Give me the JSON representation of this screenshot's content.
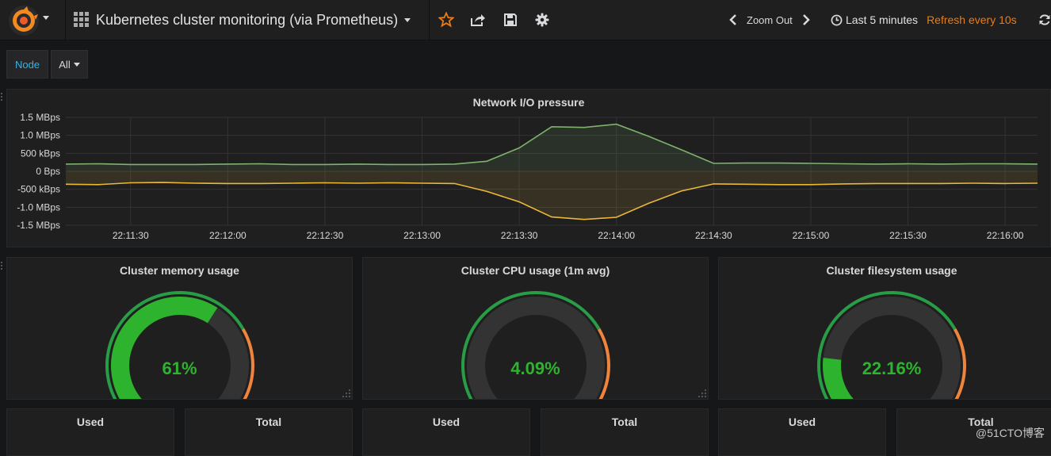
{
  "navbar": {
    "dashboard_title": "Kubernetes cluster monitoring (via Prometheus)",
    "zoom_out_label": "Zoom Out",
    "time_range_label": "Last 5 minutes",
    "refresh_label": "Refresh every 10s"
  },
  "variables": {
    "node_label": "Node",
    "node_value": "All"
  },
  "network_panel": {
    "title": "Network I/O pressure",
    "chart_data": {
      "type": "area",
      "title": "Network I/O pressure",
      "y_tick_labels": [
        "1.5 MBps",
        "1.0 MBps",
        "500 kBps",
        "0 Bps",
        "-500 kBps",
        "-1.0 MBps",
        "-1.5 MBps"
      ],
      "y_ticks": [
        1.5,
        1.0,
        0.5,
        0,
        -0.5,
        -1.0,
        -1.5
      ],
      "ylim": [
        -1.5,
        1.5
      ],
      "y_unit": "MBps",
      "x_tick_labels": [
        "22:11:30",
        "22:12:00",
        "22:12:30",
        "22:13:00",
        "22:13:30",
        "22:14:00",
        "22:14:30",
        "22:15:00",
        "22:15:30",
        "22:16:00"
      ],
      "x": [
        "22:11:10",
        "22:11:20",
        "22:11:30",
        "22:11:40",
        "22:11:50",
        "22:12:00",
        "22:12:10",
        "22:12:20",
        "22:12:30",
        "22:12:40",
        "22:12:50",
        "22:13:00",
        "22:13:10",
        "22:13:20",
        "22:13:30",
        "22:13:40",
        "22:13:50",
        "22:14:00",
        "22:14:10",
        "22:14:20",
        "22:14:30",
        "22:14:40",
        "22:14:50",
        "22:15:00",
        "22:15:10",
        "22:15:20",
        "22:15:30",
        "22:15:40",
        "22:15:50",
        "22:16:00",
        "22:16:10"
      ],
      "x_range_seconds": [
        0,
        300
      ],
      "x_seconds": [
        0,
        10,
        20,
        30,
        40,
        50,
        60,
        70,
        80,
        90,
        100,
        110,
        120,
        130,
        140,
        150,
        160,
        170,
        180,
        190,
        200,
        210,
        220,
        230,
        240,
        250,
        260,
        270,
        280,
        290,
        300
      ],
      "series": [
        {
          "color": "#7eb26d",
          "values": [
            0.2,
            0.21,
            0.19,
            0.19,
            0.19,
            0.2,
            0.21,
            0.19,
            0.19,
            0.2,
            0.19,
            0.19,
            0.2,
            0.28,
            0.65,
            1.24,
            1.22,
            1.31,
            0.97,
            0.6,
            0.22,
            0.23,
            0.23,
            0.22,
            0.21,
            0.2,
            0.21,
            0.2,
            0.21,
            0.21,
            0.2
          ]
        },
        {
          "color": "#eab839",
          "values": [
            -0.36,
            -0.37,
            -0.32,
            -0.31,
            -0.33,
            -0.34,
            -0.34,
            -0.33,
            -0.32,
            -0.33,
            -0.32,
            -0.33,
            -0.34,
            -0.56,
            -0.85,
            -1.27,
            -1.34,
            -1.28,
            -0.89,
            -0.55,
            -0.35,
            -0.36,
            -0.37,
            -0.37,
            -0.35,
            -0.34,
            -0.34,
            -0.34,
            -0.33,
            -0.34,
            -0.33
          ]
        }
      ],
      "grid": true,
      "legend": "none"
    }
  },
  "gauges": [
    {
      "title": "Cluster memory usage",
      "value_label": "61%",
      "value": 61,
      "max": 100
    },
    {
      "title": "Cluster CPU usage (1m avg)",
      "value_label": "4.09%",
      "value": 4.09,
      "max": 100
    },
    {
      "title": "Cluster filesystem usage",
      "value_label": "22.16%",
      "value": 22.16,
      "max": 100
    }
  ],
  "stats": [
    {
      "title": "Used"
    },
    {
      "title": "Total"
    },
    {
      "title": "Used"
    },
    {
      "title": "Total"
    },
    {
      "title": "Used"
    },
    {
      "title": "Total"
    }
  ],
  "watermark": "@51CTO博客",
  "colors": {
    "ok": "#299c46",
    "warn": "#ef843c",
    "crit": "#d44a3a",
    "value": "#2db32d",
    "accent_orange": "#eb7b18",
    "variable_label": "#33b5e5"
  }
}
